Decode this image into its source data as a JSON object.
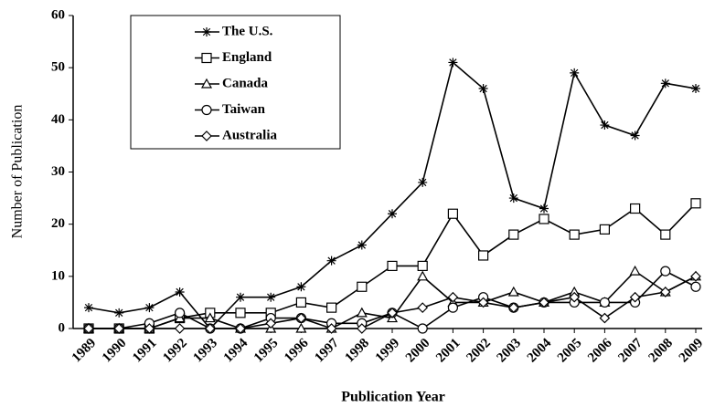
{
  "chart_data": {
    "type": "line",
    "xlabel": "Publication Year",
    "ylabel": "Number of Publication",
    "categories": [
      "1989",
      "1990",
      "1991",
      "1992",
      "1993",
      "1994",
      "1995",
      "1996",
      "1997",
      "1998",
      "1999",
      "2000",
      "2001",
      "2002",
      "2003",
      "2004",
      "2005",
      "2006",
      "2007",
      "2008",
      "2009"
    ],
    "series": [
      {
        "name": "The U.S.",
        "color": "#000000",
        "marker": "star",
        "values": [
          4,
          3,
          4,
          7,
          0,
          6,
          6,
          8,
          13,
          16,
          22,
          28,
          51,
          46,
          25,
          23,
          49,
          39,
          37,
          47,
          46
        ]
      },
      {
        "name": "England",
        "color": "#000000",
        "marker": "square",
        "values": [
          0,
          0,
          0,
          2,
          3,
          3,
          3,
          5,
          4,
          8,
          12,
          12,
          22,
          14,
          18,
          21,
          18,
          19,
          23,
          18,
          24
        ]
      },
      {
        "name": "Canada",
        "color": "#000000",
        "marker": "triangle",
        "values": [
          0,
          0,
          0,
          2,
          2,
          0,
          0,
          0,
          0,
          3,
          2,
          10,
          5,
          5,
          7,
          5,
          7,
          5,
          11,
          7,
          10
        ]
      },
      {
        "name": "Taiwan",
        "color": "#000000",
        "marker": "circle",
        "values": [
          0,
          0,
          1,
          3,
          0,
          0,
          2,
          2,
          1,
          1,
          3,
          0,
          4,
          6,
          4,
          5,
          5,
          5,
          5,
          11,
          8
        ]
      },
      {
        "name": "Australia",
        "color": "#000000",
        "marker": "diamond",
        "values": [
          0,
          0,
          0,
          0,
          0,
          0,
          1,
          2,
          0,
          0,
          3,
          4,
          6,
          5,
          4,
          5,
          6,
          2,
          6,
          7,
          10
        ]
      }
    ],
    "ylim": [
      0,
      60
    ],
    "yticks": [
      0,
      10,
      20,
      30,
      40,
      50,
      60
    ],
    "legend": "upper left"
  }
}
